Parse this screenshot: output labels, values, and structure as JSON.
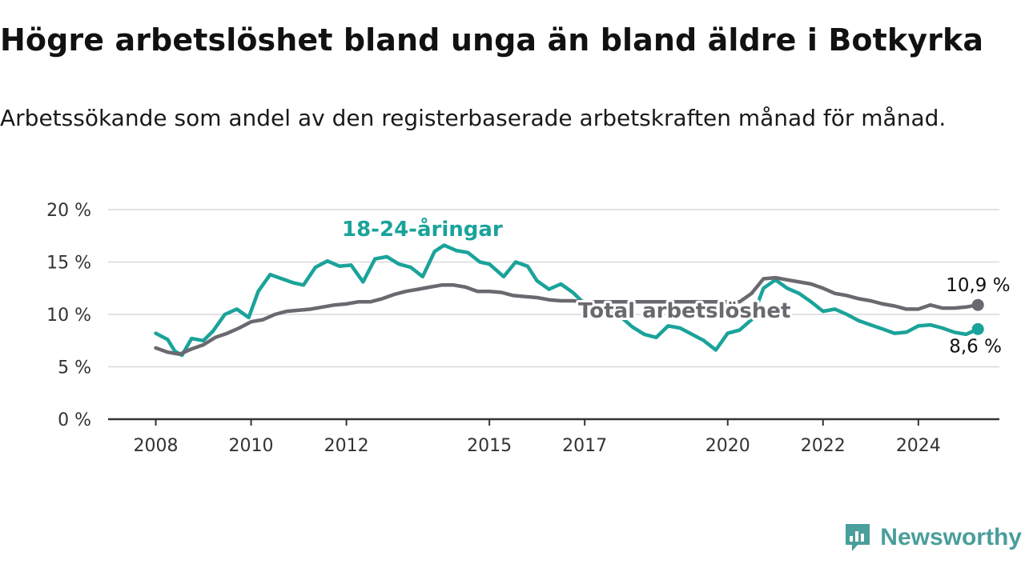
{
  "title": "Högre arbetslöshet bland unga än bland äldre i Botkyrka",
  "subtitle": "Arbetssökande som andel av den registerbaserade arbetskraften månad för månad.",
  "brand": "Newsworthy",
  "colors": {
    "youth": "#1aa39a",
    "total": "#6b6870",
    "grid": "#d9d9d9",
    "axis": "#333333"
  },
  "chart_data": {
    "type": "line",
    "xlabel": "",
    "ylabel": "",
    "ylim": [
      0,
      20
    ],
    "yticks": [
      0,
      5,
      10,
      15,
      20
    ],
    "ytick_labels": [
      "0 %",
      "5 %",
      "10 %",
      "15 %",
      "20 %"
    ],
    "xticks": [
      2008,
      2010,
      2012,
      2015,
      2017,
      2020,
      2022,
      2024
    ],
    "xtick_labels": [
      "2008",
      "2010",
      "2012",
      "2015",
      "2017",
      "2020",
      "2022",
      "2024"
    ],
    "grid": true,
    "series": [
      {
        "name": "18-24-åringar",
        "color": "#1aa39a",
        "end_label": "8,6 %",
        "points": [
          [
            2008.0,
            8.2
          ],
          [
            2008.25,
            7.6
          ],
          [
            2008.4,
            6.5
          ],
          [
            2008.55,
            6.1
          ],
          [
            2008.75,
            7.7
          ],
          [
            2009.0,
            7.5
          ],
          [
            2009.2,
            8.4
          ],
          [
            2009.45,
            10.0
          ],
          [
            2009.7,
            10.5
          ],
          [
            2009.95,
            9.7
          ],
          [
            2010.15,
            12.2
          ],
          [
            2010.4,
            13.8
          ],
          [
            2010.65,
            13.4
          ],
          [
            2010.9,
            13.0
          ],
          [
            2011.1,
            12.8
          ],
          [
            2011.35,
            14.5
          ],
          [
            2011.6,
            15.1
          ],
          [
            2011.85,
            14.6
          ],
          [
            2012.1,
            14.7
          ],
          [
            2012.35,
            13.1
          ],
          [
            2012.6,
            15.3
          ],
          [
            2012.85,
            15.5
          ],
          [
            2013.1,
            14.8
          ],
          [
            2013.35,
            14.5
          ],
          [
            2013.6,
            13.6
          ],
          [
            2013.85,
            16.0
          ],
          [
            2014.05,
            16.6
          ],
          [
            2014.3,
            16.1
          ],
          [
            2014.55,
            15.9
          ],
          [
            2014.8,
            15.0
          ],
          [
            2015.0,
            14.8
          ],
          [
            2015.3,
            13.6
          ],
          [
            2015.55,
            15.0
          ],
          [
            2015.8,
            14.6
          ],
          [
            2016.0,
            13.2
          ],
          [
            2016.25,
            12.4
          ],
          [
            2016.5,
            12.9
          ],
          [
            2016.75,
            12.1
          ],
          [
            2017.0,
            11.0
          ],
          [
            2017.25,
            10.6
          ],
          [
            2017.5,
            10.2
          ],
          [
            2017.75,
            9.8
          ],
          [
            2018.0,
            8.8
          ],
          [
            2018.25,
            8.1
          ],
          [
            2018.5,
            7.8
          ],
          [
            2018.75,
            8.9
          ],
          [
            2019.0,
            8.7
          ],
          [
            2019.25,
            8.1
          ],
          [
            2019.5,
            7.5
          ],
          [
            2019.75,
            6.6
          ],
          [
            2020.0,
            8.2
          ],
          [
            2020.25,
            8.5
          ],
          [
            2020.5,
            9.5
          ],
          [
            2020.75,
            12.5
          ],
          [
            2021.0,
            13.3
          ],
          [
            2021.25,
            12.5
          ],
          [
            2021.5,
            12.0
          ],
          [
            2021.75,
            11.2
          ],
          [
            2022.0,
            10.3
          ],
          [
            2022.25,
            10.5
          ],
          [
            2022.5,
            10.0
          ],
          [
            2022.75,
            9.4
          ],
          [
            2023.0,
            9.0
          ],
          [
            2023.25,
            8.6
          ],
          [
            2023.5,
            8.2
          ],
          [
            2023.75,
            8.3
          ],
          [
            2024.0,
            8.9
          ],
          [
            2024.25,
            9.0
          ],
          [
            2024.5,
            8.7
          ],
          [
            2024.75,
            8.3
          ],
          [
            2025.0,
            8.1
          ],
          [
            2025.25,
            8.6
          ]
        ]
      },
      {
        "name": "Total arbetslöshet",
        "color": "#6b6870",
        "end_label": "10,9 %",
        "points": [
          [
            2008.0,
            6.8
          ],
          [
            2008.25,
            6.4
          ],
          [
            2008.5,
            6.2
          ],
          [
            2008.75,
            6.7
          ],
          [
            2009.0,
            7.1
          ],
          [
            2009.25,
            7.8
          ],
          [
            2009.5,
            8.2
          ],
          [
            2009.75,
            8.7
          ],
          [
            2010.0,
            9.3
          ],
          [
            2010.25,
            9.5
          ],
          [
            2010.5,
            10.0
          ],
          [
            2010.75,
            10.3
          ],
          [
            2011.0,
            10.4
          ],
          [
            2011.25,
            10.5
          ],
          [
            2011.5,
            10.7
          ],
          [
            2011.75,
            10.9
          ],
          [
            2012.0,
            11.0
          ],
          [
            2012.25,
            11.2
          ],
          [
            2012.5,
            11.2
          ],
          [
            2012.75,
            11.5
          ],
          [
            2013.0,
            11.9
          ],
          [
            2013.25,
            12.2
          ],
          [
            2013.5,
            12.4
          ],
          [
            2013.75,
            12.6
          ],
          [
            2014.0,
            12.8
          ],
          [
            2014.25,
            12.8
          ],
          [
            2014.5,
            12.6
          ],
          [
            2014.75,
            12.2
          ],
          [
            2015.0,
            12.2
          ],
          [
            2015.25,
            12.1
          ],
          [
            2015.5,
            11.8
          ],
          [
            2015.75,
            11.7
          ],
          [
            2016.0,
            11.6
          ],
          [
            2016.25,
            11.4
          ],
          [
            2016.5,
            11.3
          ],
          [
            2016.75,
            11.3
          ],
          [
            2017.0,
            11.2
          ],
          [
            2020.25,
            11.2
          ],
          [
            2020.5,
            12.0
          ],
          [
            2020.75,
            13.4
          ],
          [
            2021.0,
            13.5
          ],
          [
            2021.25,
            13.3
          ],
          [
            2021.5,
            13.1
          ],
          [
            2021.75,
            12.9
          ],
          [
            2022.0,
            12.5
          ],
          [
            2022.25,
            12.0
          ],
          [
            2022.5,
            11.8
          ],
          [
            2022.75,
            11.5
          ],
          [
            2023.0,
            11.3
          ],
          [
            2023.25,
            11.0
          ],
          [
            2023.5,
            10.8
          ],
          [
            2023.75,
            10.5
          ],
          [
            2024.0,
            10.5
          ],
          [
            2024.25,
            10.9
          ],
          [
            2024.5,
            10.6
          ],
          [
            2024.75,
            10.6
          ],
          [
            2025.0,
            10.7
          ],
          [
            2025.25,
            10.9
          ]
        ]
      }
    ]
  }
}
